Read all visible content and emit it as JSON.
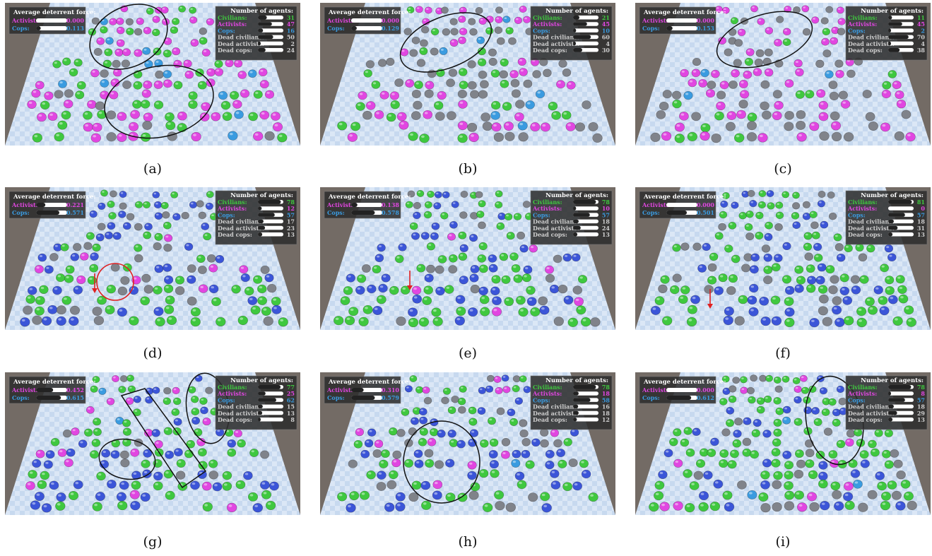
{
  "colors": {
    "civilian": "#3fc83f",
    "activist": "#e146e1",
    "cop": "#3a9be0",
    "cop_dark": "#3b55d8",
    "dead": "#80838a",
    "plane": "#c7d9ef",
    "wall": "#736b65",
    "hud": "#2d2d2d"
  },
  "hud_labels": {
    "avg_title": "Average deterrent force:",
    "activists": "Activists:",
    "cops": "Cops:",
    "num_title": "Number of agents:",
    "civilians": "Civilians:",
    "activists_r": "Activists:",
    "cops_r": "Cops:",
    "dead_civilians": "Dead civilians:",
    "dead_activists": "Dead activists:",
    "dead_cops": "Dead cops:"
  },
  "panels": [
    {
      "label": "(a)",
      "avg_act": "0.000",
      "avg_cop": "0.113",
      "act_bar": 0.0,
      "cop_bar": 0.15,
      "counts": [
        "31",
        "47",
        "16",
        "50",
        "2",
        "24"
      ],
      "bars": [
        0.35,
        0.55,
        0.2,
        0.6,
        0.05,
        0.3
      ],
      "mix": {
        "civ": 0.35,
        "act": 0.4,
        "cop": 0.1,
        "dark": 0.0,
        "dead": 0.15
      }
    },
    {
      "label": "(b)",
      "avg_act": "0.000",
      "avg_cop": "0.129",
      "act_bar": 0.0,
      "cop_bar": 0.18,
      "counts": [
        "21",
        "45",
        "10",
        "60",
        "4",
        "30"
      ],
      "bars": [
        0.25,
        0.55,
        0.12,
        0.7,
        0.06,
        0.36
      ],
      "mix": {
        "civ": 0.2,
        "act": 0.35,
        "cop": 0.05,
        "dark": 0.0,
        "dead": 0.4
      }
    },
    {
      "label": "(c)",
      "avg_act": "0.000",
      "avg_cop": "0.153",
      "act_bar": 0.0,
      "cop_bar": 0.2,
      "counts": [
        "11",
        "45",
        "2",
        "70",
        "4",
        "38"
      ],
      "bars": [
        0.15,
        0.55,
        0.03,
        0.8,
        0.06,
        0.45
      ],
      "mix": {
        "civ": 0.1,
        "act": 0.4,
        "cop": 0.02,
        "dark": 0.0,
        "dead": 0.48
      }
    },
    {
      "label": "(d)",
      "avg_act": "0.221",
      "avg_cop": "0.571",
      "act_bar": 0.3,
      "cop_bar": 0.75,
      "counts": [
        "78",
        "12",
        "57",
        "17",
        "23",
        "13"
      ],
      "bars": [
        0.9,
        0.15,
        0.66,
        0.22,
        0.28,
        0.17
      ],
      "mix": {
        "civ": 0.42,
        "act": 0.07,
        "cop": 0.0,
        "dark": 0.3,
        "dead": 0.21
      }
    },
    {
      "label": "(e)",
      "avg_act": "0.138",
      "avg_cop": "0.578",
      "act_bar": 0.2,
      "cop_bar": 0.76,
      "counts": [
        "78",
        "10",
        "57",
        "18",
        "24",
        "13"
      ],
      "bars": [
        0.9,
        0.12,
        0.66,
        0.22,
        0.3,
        0.17
      ],
      "mix": {
        "civ": 0.45,
        "act": 0.05,
        "cop": 0.0,
        "dark": 0.3,
        "dead": 0.2
      }
    },
    {
      "label": "(f)",
      "avg_act": "0.000",
      "avg_cop": "0.501",
      "act_bar": 0.0,
      "cop_bar": 0.66,
      "counts": [
        "81",
        "0",
        "57",
        "18",
        "31",
        "13"
      ],
      "bars": [
        0.93,
        0.0,
        0.66,
        0.22,
        0.37,
        0.17
      ],
      "mix": {
        "civ": 0.48,
        "act": 0.0,
        "cop": 0.0,
        "dark": 0.32,
        "dead": 0.2
      }
    },
    {
      "label": "(g)",
      "avg_act": "0.452",
      "avg_cop": "0.615",
      "act_bar": 0.55,
      "cop_bar": 0.8,
      "counts": [
        "77",
        "25",
        "62",
        "15",
        "13",
        "8"
      ],
      "bars": [
        0.89,
        0.3,
        0.72,
        0.19,
        0.17,
        0.1
      ],
      "mix": {
        "civ": 0.42,
        "act": 0.12,
        "cop": 0.06,
        "dark": 0.28,
        "dead": 0.12
      }
    },
    {
      "label": "(h)",
      "avg_act": "0.310",
      "avg_cop": "0.579",
      "act_bar": 0.4,
      "cop_bar": 0.76,
      "counts": [
        "78",
        "18",
        "58",
        "16",
        "18",
        "12"
      ],
      "bars": [
        0.9,
        0.22,
        0.68,
        0.2,
        0.22,
        0.15
      ],
      "mix": {
        "civ": 0.4,
        "act": 0.08,
        "cop": 0.03,
        "dark": 0.3,
        "dead": 0.19
      }
    },
    {
      "label": "(i)",
      "avg_act": "0.000",
      "avg_cop": "0.612",
      "act_bar": 0.0,
      "cop_bar": 0.8,
      "counts": [
        "78",
        "8",
        "57",
        "18",
        "29",
        "13"
      ],
      "bars": [
        0.9,
        0.1,
        0.66,
        0.22,
        0.35,
        0.17
      ],
      "mix": {
        "civ": 0.46,
        "act": 0.04,
        "cop": 0.01,
        "dark": 0.3,
        "dead": 0.19
      }
    }
  ]
}
